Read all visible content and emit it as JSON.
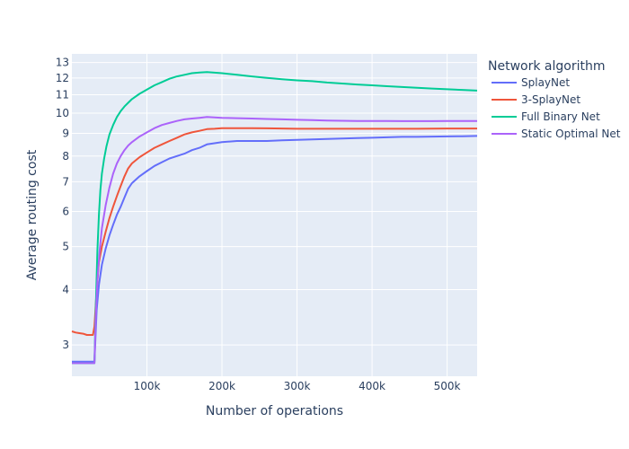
{
  "chart_data": {
    "type": "line",
    "title": "",
    "xlabel": "Number of operations",
    "ylabel": "Average routing cost",
    "xlim": [
      1,
      540000
    ],
    "ylim": [
      2.55,
      13.6
    ],
    "y_scale": "log",
    "grid": true,
    "legend_title": "Network algorithm",
    "legend_placement": "right",
    "x_ticks": [
      {
        "value": 100000,
        "label": "100k"
      },
      {
        "value": 200000,
        "label": "200k"
      },
      {
        "value": 300000,
        "label": "300k"
      },
      {
        "value": 400000,
        "label": "400k"
      },
      {
        "value": 500000,
        "label": "500k"
      }
    ],
    "y_ticks": [
      {
        "value": 3,
        "label": "3"
      },
      {
        "value": 4,
        "label": "4"
      },
      {
        "value": 5,
        "label": "5"
      },
      {
        "value": 6,
        "label": "6"
      },
      {
        "value": 7,
        "label": "7"
      },
      {
        "value": 8,
        "label": "8"
      },
      {
        "value": 9,
        "label": "9"
      },
      {
        "value": 10,
        "label": "10"
      },
      {
        "value": 11,
        "label": "11"
      },
      {
        "value": 12,
        "label": "12"
      },
      {
        "value": 13,
        "label": "13"
      }
    ],
    "series": [
      {
        "name": "SplayNet",
        "color": "#636efa",
        "x": [
          1,
          28000,
          30000,
          33000,
          36000,
          40000,
          45000,
          50000,
          55000,
          60000,
          65000,
          70000,
          75000,
          80000,
          90000,
          100000,
          110000,
          120000,
          130000,
          140000,
          150000,
          160000,
          170000,
          180000,
          190000,
          200000,
          220000,
          240000,
          260000,
          280000,
          300000,
          320000,
          340000,
          360000,
          380000,
          400000,
          420000,
          440000,
          460000,
          480000,
          500000,
          520000,
          540000
        ],
        "y": [
          2.75,
          2.75,
          2.75,
          3.6,
          4.1,
          4.55,
          4.95,
          5.3,
          5.6,
          5.9,
          6.15,
          6.45,
          6.75,
          6.95,
          7.2,
          7.4,
          7.6,
          7.75,
          7.9,
          8.0,
          8.1,
          8.25,
          8.35,
          8.5,
          8.55,
          8.6,
          8.65,
          8.65,
          8.65,
          8.68,
          8.7,
          8.72,
          8.74,
          8.76,
          8.78,
          8.8,
          8.82,
          8.84,
          8.84,
          8.85,
          8.86,
          8.87,
          8.88
        ]
      },
      {
        "name": "3-SplayNet",
        "color": "#ef553b",
        "x": [
          1,
          5000,
          10000,
          15000,
          20000,
          25000,
          28000,
          30000,
          33000,
          36000,
          40000,
          45000,
          50000,
          55000,
          60000,
          65000,
          70000,
          75000,
          80000,
          90000,
          100000,
          110000,
          120000,
          130000,
          140000,
          150000,
          160000,
          170000,
          180000,
          190000,
          200000,
          220000,
          240000,
          260000,
          280000,
          300000,
          340000,
          380000,
          420000,
          460000,
          500000,
          540000
        ],
        "y": [
          3.22,
          3.2,
          3.19,
          3.18,
          3.16,
          3.16,
          3.16,
          3.3,
          4.0,
          4.6,
          5.0,
          5.4,
          5.8,
          6.15,
          6.5,
          6.85,
          7.2,
          7.5,
          7.7,
          7.95,
          8.15,
          8.35,
          8.5,
          8.65,
          8.8,
          8.95,
          9.05,
          9.12,
          9.2,
          9.22,
          9.25,
          9.25,
          9.25,
          9.24,
          9.23,
          9.22,
          9.22,
          9.22,
          9.22,
          9.22,
          9.23,
          9.23
        ]
      },
      {
        "name": "Full Binary Net",
        "color": "#00cc96",
        "x": [
          1,
          28000,
          30000,
          32000,
          34000,
          36000,
          38000,
          40000,
          43000,
          46000,
          50000,
          55000,
          60000,
          65000,
          70000,
          75000,
          80000,
          90000,
          100000,
          110000,
          120000,
          130000,
          140000,
          150000,
          160000,
          170000,
          180000,
          190000,
          200000,
          220000,
          240000,
          260000,
          280000,
          300000,
          320000,
          340000,
          360000,
          380000,
          400000,
          420000,
          440000,
          460000,
          480000,
          500000,
          520000,
          540000
        ],
        "y": [
          2.73,
          2.73,
          2.73,
          3.7,
          4.9,
          5.9,
          6.7,
          7.3,
          7.9,
          8.4,
          8.95,
          9.4,
          9.8,
          10.1,
          10.35,
          10.55,
          10.75,
          11.05,
          11.3,
          11.55,
          11.75,
          11.95,
          12.1,
          12.2,
          12.3,
          12.35,
          12.38,
          12.34,
          12.3,
          12.2,
          12.1,
          12.0,
          11.92,
          11.85,
          11.8,
          11.72,
          11.66,
          11.6,
          11.55,
          11.5,
          11.45,
          11.4,
          11.36,
          11.32,
          11.28,
          11.24
        ]
      },
      {
        "name": "Static Optimal Net",
        "color": "#ab63fa",
        "x": [
          1,
          28000,
          30000,
          32000,
          34000,
          37000,
          40000,
          45000,
          50000,
          55000,
          60000,
          65000,
          70000,
          75000,
          80000,
          90000,
          100000,
          110000,
          120000,
          130000,
          140000,
          150000,
          160000,
          170000,
          180000,
          190000,
          200000,
          220000,
          240000,
          260000,
          280000,
          300000,
          320000,
          340000,
          360000,
          380000,
          400000,
          420000,
          440000,
          460000,
          480000,
          500000,
          520000,
          540000
        ],
        "y": [
          2.73,
          2.73,
          2.73,
          3.5,
          4.2,
          4.9,
          5.5,
          6.2,
          6.8,
          7.3,
          7.7,
          8.0,
          8.25,
          8.45,
          8.6,
          8.85,
          9.05,
          9.25,
          9.4,
          9.5,
          9.6,
          9.68,
          9.72,
          9.76,
          9.8,
          9.78,
          9.76,
          9.74,
          9.72,
          9.7,
          9.68,
          9.66,
          9.64,
          9.62,
          9.61,
          9.6,
          9.6,
          9.6,
          9.59,
          9.59,
          9.59,
          9.6,
          9.6,
          9.6
        ]
      }
    ]
  }
}
